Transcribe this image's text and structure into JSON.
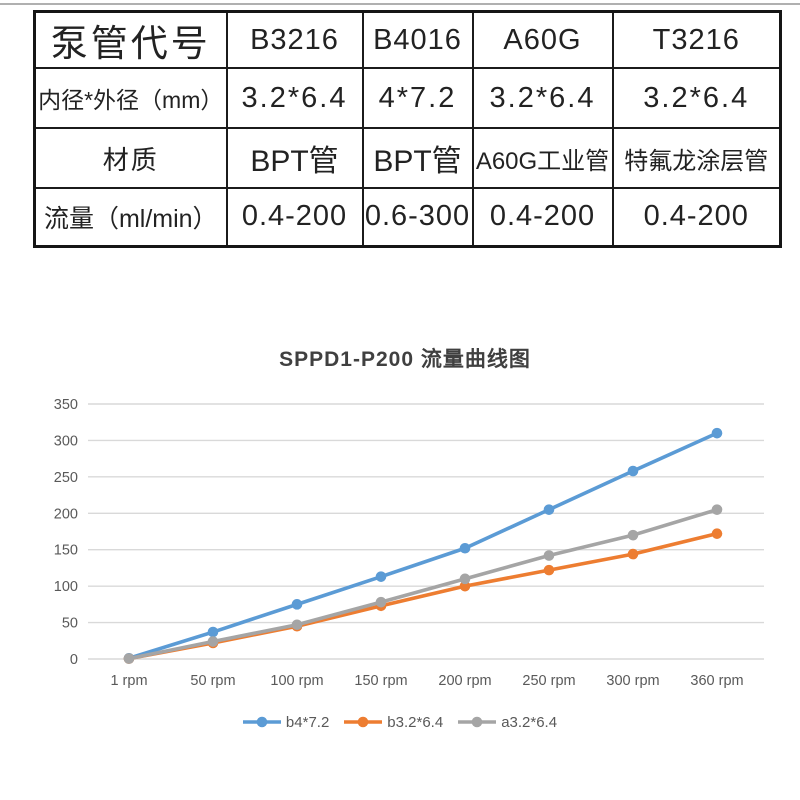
{
  "table": {
    "rows": [
      {
        "header": "泵管代号",
        "cells": [
          "B3216",
          "B4016",
          "A60G",
          "T3216"
        ]
      },
      {
        "header": "内径*外径（mm）",
        "cells": [
          "3.2*6.4",
          "4*7.2",
          "3.2*6.4",
          "3.2*6.4"
        ]
      },
      {
        "header": "材质",
        "cells": [
          "BPT管",
          "BPT管",
          "A60G工业管",
          "特氟龙涂层管"
        ]
      },
      {
        "header": "流量（ml/min）",
        "cells": [
          "0.4-200",
          "0.6-300",
          "0.4-200",
          "0.4-200"
        ]
      }
    ]
  },
  "chart_data": {
    "type": "line",
    "title": "SPPD1-P200 流量曲线图",
    "categories": [
      "1 rpm",
      "50 rpm",
      "100 rpm",
      "150 rpm",
      "200 rpm",
      "250 rpm",
      "300 rpm",
      "360 rpm"
    ],
    "series": [
      {
        "name": "b4*7.2",
        "color": "#5B9BD5",
        "values": [
          1,
          37,
          75,
          113,
          152,
          205,
          258,
          310
        ]
      },
      {
        "name": "b3.2*6.4",
        "color": "#ED7D31",
        "values": [
          0.5,
          22,
          45,
          73,
          100,
          122,
          144,
          172
        ]
      },
      {
        "name": "a3.2*6.4",
        "color": "#A5A5A5",
        "values": [
          0.5,
          24,
          47,
          78,
          110,
          142,
          170,
          205
        ]
      }
    ],
    "xlabel": "",
    "ylabel": "",
    "ylim": [
      0,
      350
    ],
    "ytick_step": 50,
    "grid": true,
    "legend_position": "bottom"
  },
  "colors": {
    "gridline": "#d9d9d9",
    "axis_text": "#595959",
    "title_text": "#404040",
    "table_border": "#1b1b1b"
  }
}
